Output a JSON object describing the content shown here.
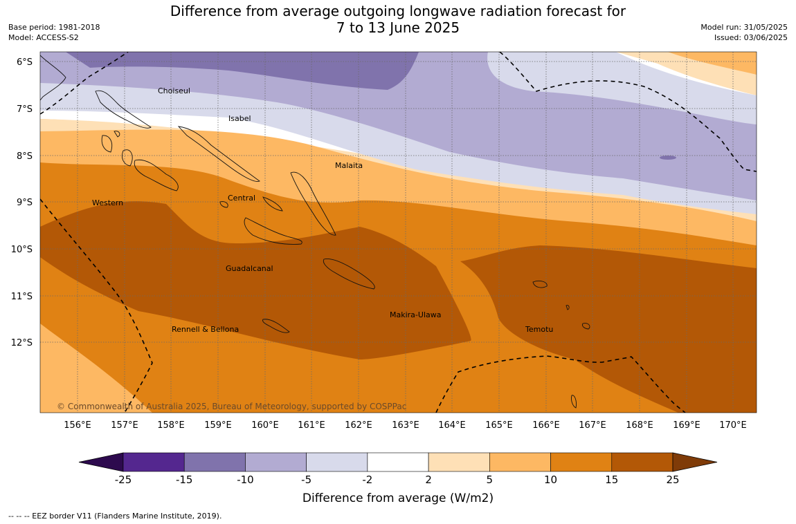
{
  "header": {
    "title_line1": "Difference from average outgoing longwave radiation forecast for",
    "title_line2": "7 to 13 June 2025",
    "base_period": "Base period: 1981-2018",
    "model": "Model: ACCESS-S2",
    "model_run": "Model run: 31/05/2025",
    "issued": "Issued: 03/06/2025"
  },
  "map": {
    "lat_labels": [
      "6°S",
      "7°S",
      "8°S",
      "9°S",
      "10°S",
      "11°S",
      "12°S"
    ],
    "lon_labels": [
      "156°E",
      "157°E",
      "158°E",
      "159°E",
      "160°E",
      "161°E",
      "162°E",
      "163°E",
      "164°E",
      "165°E",
      "166°E",
      "167°E",
      "168°E",
      "169°E",
      "170°E"
    ],
    "places": [
      "Choiseul",
      "Isabel",
      "Malaita",
      "Western",
      "Central",
      "Guadalcanal",
      "Makira-Ulawa",
      "Rennell & Bellona",
      "Temotu"
    ],
    "copyright": "© Commonwealth of Australia 2025, Bureau of Meteorology, supported by COSPPac"
  },
  "colorbar": {
    "ticks": [
      "-25",
      "-15",
      "-10",
      "-5",
      "-2",
      "2",
      "5",
      "10",
      "15",
      "25"
    ],
    "colors": [
      "#2d0a4e",
      "#54278f",
      "#8073ac",
      "#b2abd2",
      "#d8daeb",
      "#ffffff",
      "#fee0b6",
      "#fdb863",
      "#e08214",
      "#b35806",
      "#7f3b08"
    ],
    "title": "Difference from average (W/m2)"
  },
  "footer": {
    "eez_note": "--  --  -- EEZ border V11 (Flanders Marine Institute, 2019)."
  }
}
